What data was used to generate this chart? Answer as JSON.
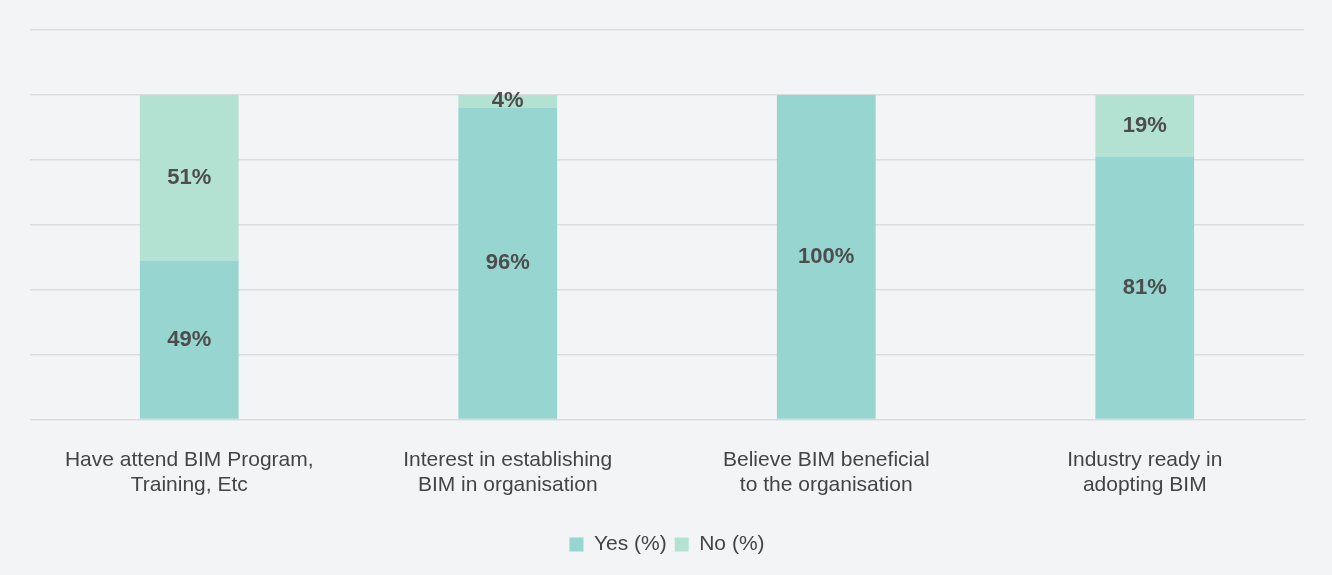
{
  "chart_data": {
    "type": "bar",
    "stacked": true,
    "categories": [
      "Have attend BIM Program, Training, Etc",
      "Interest in establishing BIM in organisation",
      "Believe BIM beneficial to the organisation",
      "Industry ready in adopting BIM"
    ],
    "series": [
      {
        "name": "Yes (%)",
        "color": "#96d5d0",
        "values": [
          49,
          96,
          100,
          81
        ],
        "value_labels": [
          "49%",
          "96%",
          "100%",
          "81%"
        ]
      },
      {
        "name": "No (%)",
        "color": "#b3e2d3",
        "values": [
          51,
          4,
          0,
          19
        ],
        "value_labels": [
          "51%",
          "4%",
          null,
          "19%"
        ]
      }
    ],
    "ylim": [
      0,
      120
    ],
    "yticks": [
      {
        "value": 0,
        "label": null
      },
      {
        "value": 20,
        "label": null
      },
      {
        "value": 40,
        "label": null
      },
      {
        "value": 60,
        "label": null
      },
      {
        "value": 80,
        "label": null
      },
      {
        "value": 100,
        "label": null
      },
      {
        "value": 120,
        "label": null
      }
    ],
    "grid": "y",
    "tick_labels": "x",
    "legend": "bottom"
  }
}
